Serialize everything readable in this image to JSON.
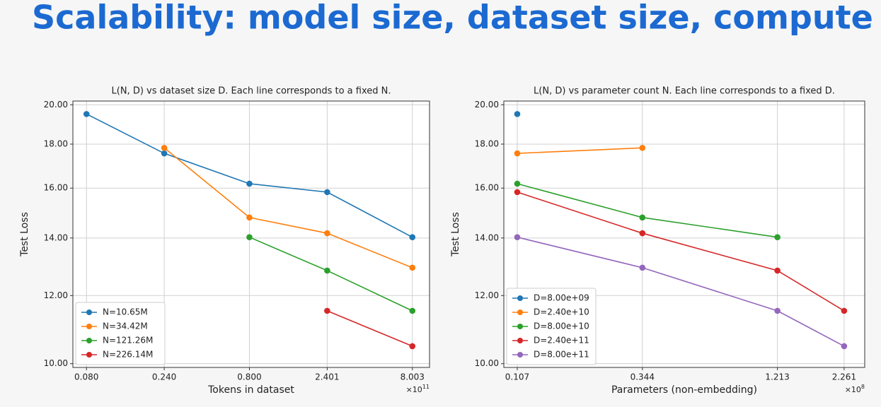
{
  "header": {
    "title": "Scalability: model size, dataset size, compute"
  },
  "chart_data": [
    {
      "type": "line",
      "title": "L(N, D) vs dataset size D. Each line corresponds to a fixed N.",
      "x_label": "Tokens in dataset",
      "y_label": "Test Loss",
      "x_offset_label": "×10",
      "x_offset_exponent": "11",
      "xscale": "log",
      "yscale": "log",
      "grid": true,
      "legend": "lower left",
      "x": [
        0.08,
        0.24,
        0.8,
        2.401,
        8.003
      ],
      "xlim": [
        0.066,
        10.2
      ],
      "xticks": [
        {
          "value": 0.08,
          "label": "0.080"
        },
        {
          "value": 0.24,
          "label": "0.240"
        },
        {
          "value": 0.8,
          "label": "0.800"
        },
        2.401,
        8.003
      ],
      "ylim": [
        9.9,
        20.2
      ],
      "yticks": [
        {
          "value": 10,
          "label": "10.00"
        },
        {
          "value": 12,
          "label": "12.00"
        },
        {
          "value": 14,
          "label": "14.00"
        },
        {
          "value": 16,
          "label": "16.00"
        },
        {
          "value": 18,
          "label": "18.00"
        },
        {
          "value": 20,
          "label": "20.00"
        }
      ],
      "series": [
        {
          "name": "N=10.65M",
          "color": "#1f77b4",
          "values": [
            19.51,
            17.56,
            16.19,
            15.83,
            14.03
          ]
        },
        {
          "name": "N=34.42M",
          "color": "#ff7f0e",
          "values": [
            null,
            17.82,
            14.79,
            14.18,
            12.93
          ]
        },
        {
          "name": "N=121.26M",
          "color": "#2ca02c",
          "values": [
            null,
            null,
            14.03,
            12.83,
            11.52
          ]
        },
        {
          "name": "N=226.14M",
          "color": "#d62728",
          "values": [
            null,
            null,
            null,
            11.52,
            10.48
          ]
        }
      ]
    },
    {
      "type": "line",
      "title": "L(N, D) vs parameter count N. Each line corresponds to a fixed D.",
      "x_label": "Parameters (non-embedding)",
      "y_label": "Test Loss",
      "x_offset_label": "×10",
      "x_offset_exponent": "8",
      "xscale": "log",
      "yscale": "log",
      "grid": true,
      "legend": "lower left",
      "x": [
        0.107,
        0.344,
        1.213,
        2.261
      ],
      "xlim": [
        0.0944,
        2.74
      ],
      "xticks": [
        0.107,
        0.344,
        1.213,
        2.261
      ],
      "ylim": [
        9.9,
        20.2
      ],
      "yticks": [
        {
          "value": 10,
          "label": "10.00"
        },
        {
          "value": 12,
          "label": "12.00"
        },
        {
          "value": 14,
          "label": "14.00"
        },
        {
          "value": 16,
          "label": "16.00"
        },
        {
          "value": 18,
          "label": "18.00"
        },
        {
          "value": 20,
          "label": "20.00"
        }
      ],
      "series": [
        {
          "name": "D=8.00e+09",
          "color": "#1f77b4",
          "values": [
            19.51,
            null,
            null,
            null
          ]
        },
        {
          "name": "D=2.40e+10",
          "color": "#ff7f0e",
          "values": [
            17.56,
            17.82,
            null,
            null
          ]
        },
        {
          "name": "D=8.00e+10",
          "color": "#2ca02c",
          "values": [
            16.19,
            14.79,
            14.03,
            null
          ]
        },
        {
          "name": "D=2.40e+11",
          "color": "#d62728",
          "values": [
            15.83,
            14.18,
            12.83,
            11.52
          ]
        },
        {
          "name": "D=8.00e+11",
          "color": "#9467bd",
          "values": [
            14.03,
            12.93,
            11.52,
            10.48
          ]
        }
      ]
    }
  ]
}
